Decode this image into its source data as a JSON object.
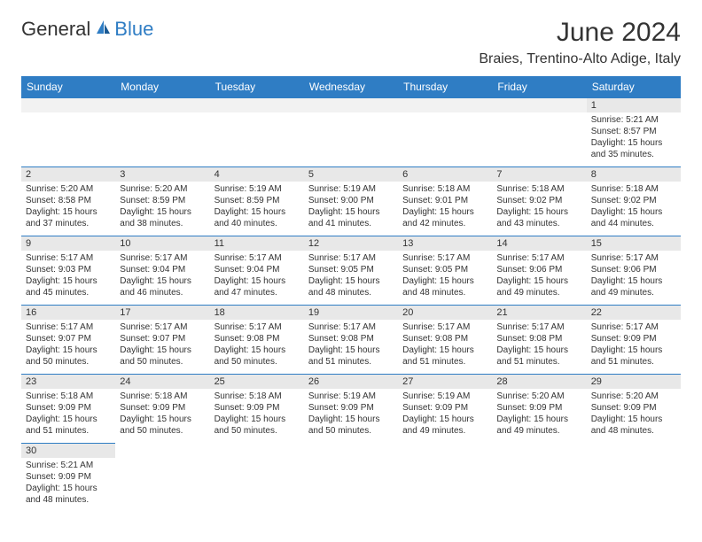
{
  "logo": {
    "part1": "General",
    "part2": "Blue"
  },
  "title": "June 2024",
  "location": "Braies, Trentino-Alto Adige, Italy",
  "colors": {
    "header_bg": "#2f7dc4",
    "header_text": "#ffffff",
    "daynum_bg": "#e8e8e8",
    "border": "#2f7dc4",
    "text": "#333333",
    "logo_accent": "#2f7dc4"
  },
  "weekdays": [
    "Sunday",
    "Monday",
    "Tuesday",
    "Wednesday",
    "Thursday",
    "Friday",
    "Saturday"
  ],
  "weeks": [
    [
      null,
      null,
      null,
      null,
      null,
      null,
      {
        "d": "1",
        "sr": "Sunrise: 5:21 AM",
        "ss": "Sunset: 8:57 PM",
        "dl": "Daylight: 15 hours and 35 minutes."
      }
    ],
    [
      {
        "d": "2",
        "sr": "Sunrise: 5:20 AM",
        "ss": "Sunset: 8:58 PM",
        "dl": "Daylight: 15 hours and 37 minutes."
      },
      {
        "d": "3",
        "sr": "Sunrise: 5:20 AM",
        "ss": "Sunset: 8:59 PM",
        "dl": "Daylight: 15 hours and 38 minutes."
      },
      {
        "d": "4",
        "sr": "Sunrise: 5:19 AM",
        "ss": "Sunset: 8:59 PM",
        "dl": "Daylight: 15 hours and 40 minutes."
      },
      {
        "d": "5",
        "sr": "Sunrise: 5:19 AM",
        "ss": "Sunset: 9:00 PM",
        "dl": "Daylight: 15 hours and 41 minutes."
      },
      {
        "d": "6",
        "sr": "Sunrise: 5:18 AM",
        "ss": "Sunset: 9:01 PM",
        "dl": "Daylight: 15 hours and 42 minutes."
      },
      {
        "d": "7",
        "sr": "Sunrise: 5:18 AM",
        "ss": "Sunset: 9:02 PM",
        "dl": "Daylight: 15 hours and 43 minutes."
      },
      {
        "d": "8",
        "sr": "Sunrise: 5:18 AM",
        "ss": "Sunset: 9:02 PM",
        "dl": "Daylight: 15 hours and 44 minutes."
      }
    ],
    [
      {
        "d": "9",
        "sr": "Sunrise: 5:17 AM",
        "ss": "Sunset: 9:03 PM",
        "dl": "Daylight: 15 hours and 45 minutes."
      },
      {
        "d": "10",
        "sr": "Sunrise: 5:17 AM",
        "ss": "Sunset: 9:04 PM",
        "dl": "Daylight: 15 hours and 46 minutes."
      },
      {
        "d": "11",
        "sr": "Sunrise: 5:17 AM",
        "ss": "Sunset: 9:04 PM",
        "dl": "Daylight: 15 hours and 47 minutes."
      },
      {
        "d": "12",
        "sr": "Sunrise: 5:17 AM",
        "ss": "Sunset: 9:05 PM",
        "dl": "Daylight: 15 hours and 48 minutes."
      },
      {
        "d": "13",
        "sr": "Sunrise: 5:17 AM",
        "ss": "Sunset: 9:05 PM",
        "dl": "Daylight: 15 hours and 48 minutes."
      },
      {
        "d": "14",
        "sr": "Sunrise: 5:17 AM",
        "ss": "Sunset: 9:06 PM",
        "dl": "Daylight: 15 hours and 49 minutes."
      },
      {
        "d": "15",
        "sr": "Sunrise: 5:17 AM",
        "ss": "Sunset: 9:06 PM",
        "dl": "Daylight: 15 hours and 49 minutes."
      }
    ],
    [
      {
        "d": "16",
        "sr": "Sunrise: 5:17 AM",
        "ss": "Sunset: 9:07 PM",
        "dl": "Daylight: 15 hours and 50 minutes."
      },
      {
        "d": "17",
        "sr": "Sunrise: 5:17 AM",
        "ss": "Sunset: 9:07 PM",
        "dl": "Daylight: 15 hours and 50 minutes."
      },
      {
        "d": "18",
        "sr": "Sunrise: 5:17 AM",
        "ss": "Sunset: 9:08 PM",
        "dl": "Daylight: 15 hours and 50 minutes."
      },
      {
        "d": "19",
        "sr": "Sunrise: 5:17 AM",
        "ss": "Sunset: 9:08 PM",
        "dl": "Daylight: 15 hours and 51 minutes."
      },
      {
        "d": "20",
        "sr": "Sunrise: 5:17 AM",
        "ss": "Sunset: 9:08 PM",
        "dl": "Daylight: 15 hours and 51 minutes."
      },
      {
        "d": "21",
        "sr": "Sunrise: 5:17 AM",
        "ss": "Sunset: 9:08 PM",
        "dl": "Daylight: 15 hours and 51 minutes."
      },
      {
        "d": "22",
        "sr": "Sunrise: 5:17 AM",
        "ss": "Sunset: 9:09 PM",
        "dl": "Daylight: 15 hours and 51 minutes."
      }
    ],
    [
      {
        "d": "23",
        "sr": "Sunrise: 5:18 AM",
        "ss": "Sunset: 9:09 PM",
        "dl": "Daylight: 15 hours and 51 minutes."
      },
      {
        "d": "24",
        "sr": "Sunrise: 5:18 AM",
        "ss": "Sunset: 9:09 PM",
        "dl": "Daylight: 15 hours and 50 minutes."
      },
      {
        "d": "25",
        "sr": "Sunrise: 5:18 AM",
        "ss": "Sunset: 9:09 PM",
        "dl": "Daylight: 15 hours and 50 minutes."
      },
      {
        "d": "26",
        "sr": "Sunrise: 5:19 AM",
        "ss": "Sunset: 9:09 PM",
        "dl": "Daylight: 15 hours and 50 minutes."
      },
      {
        "d": "27",
        "sr": "Sunrise: 5:19 AM",
        "ss": "Sunset: 9:09 PM",
        "dl": "Daylight: 15 hours and 49 minutes."
      },
      {
        "d": "28",
        "sr": "Sunrise: 5:20 AM",
        "ss": "Sunset: 9:09 PM",
        "dl": "Daylight: 15 hours and 49 minutes."
      },
      {
        "d": "29",
        "sr": "Sunrise: 5:20 AM",
        "ss": "Sunset: 9:09 PM",
        "dl": "Daylight: 15 hours and 48 minutes."
      }
    ],
    [
      {
        "d": "30",
        "sr": "Sunrise: 5:21 AM",
        "ss": "Sunset: 9:09 PM",
        "dl": "Daylight: 15 hours and 48 minutes."
      },
      null,
      null,
      null,
      null,
      null,
      null
    ]
  ]
}
